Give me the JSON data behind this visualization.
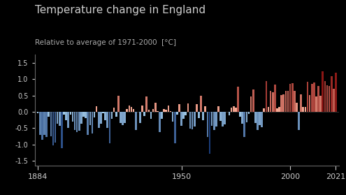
{
  "title": "Temperature change in England",
  "subtitle": "Relative to average of 1971-2000  [°C]",
  "years": [
    1884,
    1885,
    1886,
    1887,
    1888,
    1889,
    1890,
    1891,
    1892,
    1893,
    1894,
    1895,
    1896,
    1897,
    1898,
    1899,
    1900,
    1901,
    1902,
    1903,
    1904,
    1905,
    1906,
    1907,
    1908,
    1909,
    1910,
    1911,
    1912,
    1913,
    1914,
    1915,
    1916,
    1917,
    1918,
    1919,
    1920,
    1921,
    1922,
    1923,
    1924,
    1925,
    1926,
    1927,
    1928,
    1929,
    1930,
    1931,
    1932,
    1933,
    1934,
    1935,
    1936,
    1937,
    1938,
    1939,
    1940,
    1941,
    1942,
    1943,
    1944,
    1945,
    1946,
    1947,
    1948,
    1949,
    1950,
    1951,
    1952,
    1953,
    1954,
    1955,
    1956,
    1957,
    1958,
    1959,
    1960,
    1961,
    1962,
    1963,
    1964,
    1965,
    1966,
    1967,
    1968,
    1969,
    1970,
    1971,
    1972,
    1973,
    1974,
    1975,
    1976,
    1977,
    1978,
    1979,
    1980,
    1981,
    1982,
    1983,
    1984,
    1985,
    1986,
    1987,
    1988,
    1989,
    1990,
    1991,
    1992,
    1993,
    1994,
    1995,
    1996,
    1997,
    1998,
    1999,
    2000,
    2001,
    2002,
    2003,
    2004,
    2005,
    2006,
    2007,
    2008,
    2009,
    2010,
    2011,
    2012,
    2013,
    2014,
    2015,
    2016,
    2017,
    2018,
    2019,
    2020,
    2021
  ],
  "anomalies": [
    -0.04,
    -0.7,
    -0.85,
    -0.7,
    -0.78,
    -0.14,
    -0.75,
    -1.02,
    -0.95,
    -0.37,
    -0.43,
    -1.12,
    -0.08,
    -0.25,
    -0.49,
    -0.08,
    -0.3,
    -0.55,
    -0.63,
    -0.57,
    -0.36,
    -0.15,
    -0.19,
    -0.71,
    -0.41,
    -0.66,
    -0.17,
    0.18,
    -0.49,
    -0.37,
    -0.04,
    -0.26,
    -0.5,
    -0.97,
    -0.21,
    0.12,
    -0.14,
    0.49,
    -0.34,
    -0.41,
    -0.34,
    0.08,
    0.2,
    0.15,
    0.08,
    -0.56,
    -0.01,
    -0.35,
    0.2,
    -0.12,
    0.46,
    0.07,
    -0.21,
    0.09,
    0.27,
    0.03,
    -0.62,
    -0.21,
    0.08,
    0.07,
    0.2,
    0.03,
    -0.3,
    -0.97,
    -0.08,
    0.23,
    -0.43,
    -0.21,
    -0.1,
    0.26,
    -0.51,
    -0.54,
    -0.46,
    0.24,
    -0.19,
    0.49,
    -0.26,
    0.17,
    -0.76,
    -1.28,
    -0.42,
    -0.55,
    -0.46,
    0.17,
    -0.27,
    -0.44,
    -0.39,
    0.0,
    -0.1,
    0.13,
    0.18,
    0.12,
    0.77,
    -0.14,
    -0.36,
    -0.78,
    -0.32,
    -0.06,
    0.47,
    0.68,
    -0.34,
    -0.56,
    -0.4,
    -0.48,
    0.11,
    0.94,
    0.15,
    0.65,
    0.59,
    0.84,
    0.1,
    0.15,
    0.52,
    0.53,
    0.65,
    0.65,
    0.85,
    0.87,
    0.64,
    0.27,
    -0.56,
    0.53,
    0.15,
    0.15,
    0.91,
    0.52,
    0.86,
    0.89,
    0.47,
    0.8,
    0.49,
    1.23,
    0.95,
    0.82,
    0.78,
    1.08,
    0.7,
    1.2
  ],
  "background_color": "#000000",
  "text_color": "#cccccc",
  "title_fontsize": 11,
  "subtitle_fontsize": 7.5,
  "ylim": [
    -1.65,
    1.75
  ],
  "yticks": [
    -1.5,
    -1.0,
    -0.5,
    0.0,
    0.5,
    1.0,
    1.5
  ],
  "xtick_labels": [
    "1884",
    "1950",
    "2000",
    "2021"
  ],
  "xtick_positions": [
    1884,
    1950,
    2000,
    2021
  ],
  "spine_color": "#666666",
  "grid": false
}
